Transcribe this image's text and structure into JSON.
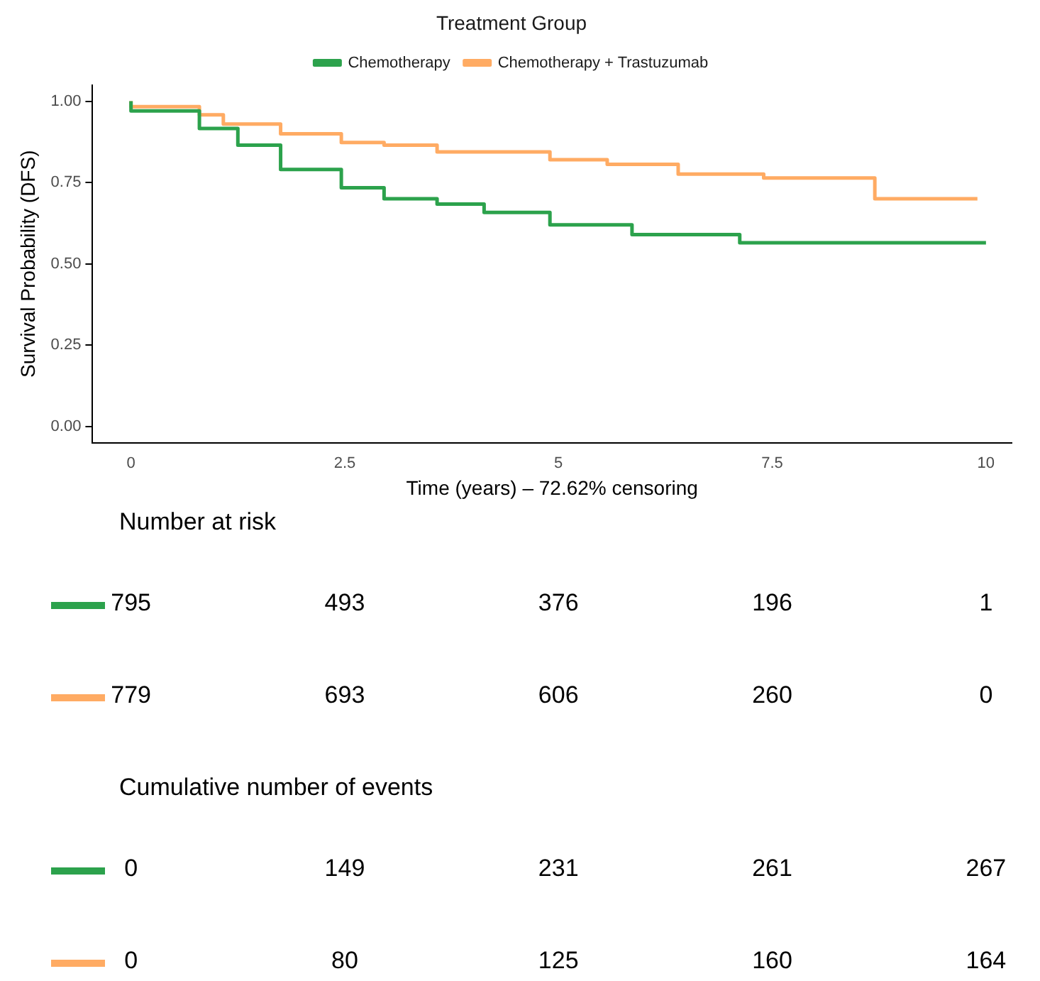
{
  "chart_data": {
    "type": "step",
    "xlabel": "Time (years) – 72.62% censoring",
    "ylabel": "Survival Probability (DFS)",
    "legend_title": "Treatment Group",
    "legend": "top",
    "grid": false,
    "xlim": [
      -0.45,
      10.3
    ],
    "xticks": [
      0,
      2.5,
      5,
      7.5,
      10
    ],
    "ylim": [
      -0.05,
      1.05
    ],
    "yticks": [
      {
        "value": 0,
        "label": "0.00"
      },
      {
        "value": 0.25,
        "label": "0.25"
      },
      {
        "value": 0.5,
        "label": "0.50"
      },
      {
        "value": 0.75,
        "label": "0.75"
      },
      {
        "value": 1,
        "label": "1.00"
      }
    ],
    "series": [
      {
        "name": "Chemotherapy",
        "color": "#2ca24c",
        "x": [
          0,
          0.8,
          1.25,
          1.75,
          2.46,
          2.96,
          3.58,
          4.13,
          4.9,
          5.86,
          7.12,
          8.57,
          10
        ],
        "values": [
          1,
          0.97,
          0.916,
          0.865,
          0.79,
          0.734,
          0.7,
          0.684,
          0.658,
          0.62,
          0.59,
          0.565,
          0.565
        ]
      },
      {
        "name": "Chemotherapy + Trastuzumab",
        "color": "#ffab63",
        "x": [
          0,
          0.8,
          1.08,
          1.75,
          2.46,
          2.96,
          3.58,
          4.9,
          5.57,
          6.4,
          7.4,
          8.7,
          9.57,
          9.9
        ],
        "values": [
          1,
          0.983,
          0.958,
          0.93,
          0.9,
          0.873,
          0.865,
          0.844,
          0.82,
          0.806,
          0.776,
          0.764,
          0.7,
          0.7
        ]
      }
    ],
    "annotations": [
      "Number at risk",
      "795",
      "493",
      "376",
      "196",
      "1",
      "779",
      "693",
      "606",
      "260",
      "0",
      "Cumulative number of events",
      "0",
      "149",
      "231",
      "261",
      "267",
      "0",
      "80",
      "125",
      "160",
      "164"
    ]
  }
}
